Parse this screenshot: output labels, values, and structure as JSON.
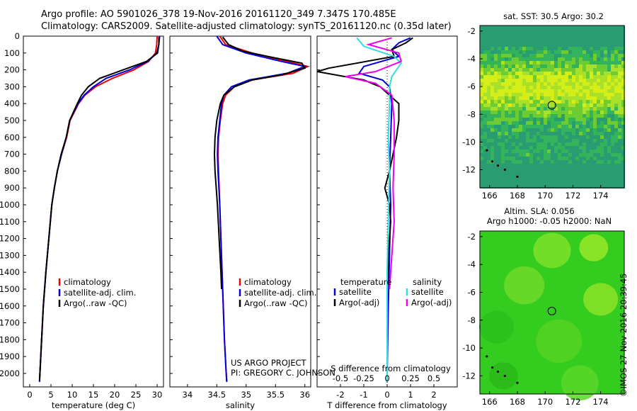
{
  "title": {
    "line1": "Argo profile: AO 5901026_378 19-Nov-2016 20161120_349 7.347S 170.485E",
    "line2": "Climatology: CARS2009. Satellite-adjusted climatology: synTS_20161120.nc (0.35d later)"
  },
  "credits": {
    "project": "US ARGO PROJECT",
    "pi": "PI: GREGORY C. JOHNSON"
  },
  "watermark": "©IMOS 27-Nov-2016 20:39:45",
  "colors": {
    "climatology": "#ee0000",
    "satellite": "#0000dd",
    "argo": "#000000",
    "sat_salinity": "#33dddd",
    "argo_salinity": "#ee00ee"
  },
  "chart_data": [
    {
      "type": "line",
      "id": "temperature",
      "xlabel": "temperature (deg C)",
      "ylabel": "",
      "xlim": [
        -1.5,
        31.5
      ],
      "ylim": [
        2080,
        0
      ],
      "xticks": [
        0,
        5,
        10,
        15,
        20,
        25,
        30
      ],
      "yticks": [
        0,
        100,
        200,
        300,
        400,
        500,
        600,
        700,
        800,
        900,
        1000,
        1100,
        1200,
        1300,
        1400,
        1500,
        1600,
        1700,
        1800,
        1900,
        2000
      ],
      "legend": [
        "climatology",
        "satellite-adj. clim.",
        "Argo(..raw -QC)"
      ],
      "series": [
        {
          "name": "climatology",
          "color_key": "climatology",
          "points": [
            [
              30.0,
              0
            ],
            [
              29.9,
              50
            ],
            [
              29.6,
              100
            ],
            [
              28.0,
              150
            ],
            [
              24.5,
              200
            ],
            [
              19.5,
              250
            ],
            [
              15.5,
              300
            ],
            [
              13.0,
              350
            ],
            [
              11.5,
              400
            ],
            [
              10.5,
              450
            ],
            [
              9.5,
              500
            ],
            [
              8.7,
              600
            ],
            [
              7.5,
              700
            ],
            [
              6.5,
              800
            ],
            [
              5.8,
              900
            ],
            [
              5.2,
              1000
            ],
            [
              4.5,
              1200
            ],
            [
              3.8,
              1400
            ],
            [
              3.2,
              1600
            ],
            [
              2.8,
              1800
            ],
            [
              2.4,
              2000
            ],
            [
              2.3,
              2050
            ]
          ]
        },
        {
          "name": "satellite-adj. clim.",
          "color_key": "satellite",
          "points": [
            [
              30.6,
              0
            ],
            [
              30.4,
              50
            ],
            [
              29.9,
              100
            ],
            [
              27.8,
              150
            ],
            [
              23.5,
              200
            ],
            [
              18.0,
              250
            ],
            [
              15.0,
              300
            ],
            [
              12.8,
              350
            ],
            [
              11.4,
              400
            ],
            [
              10.4,
              450
            ],
            [
              9.4,
              500
            ],
            [
              8.6,
              600
            ],
            [
              7.5,
              700
            ],
            [
              6.5,
              800
            ],
            [
              5.8,
              900
            ],
            [
              5.2,
              1000
            ],
            [
              4.5,
              1200
            ],
            [
              3.8,
              1400
            ],
            [
              3.2,
              1600
            ],
            [
              2.8,
              1800
            ],
            [
              2.4,
              2000
            ],
            [
              2.3,
              2050
            ]
          ]
        },
        {
          "name": "Argo(..raw -QC)",
          "color_key": "argo",
          "points": [
            [
              30.4,
              5
            ],
            [
              30.4,
              50
            ],
            [
              30.1,
              100
            ],
            [
              27.5,
              150
            ],
            [
              22.0,
              200
            ],
            [
              16.5,
              250
            ],
            [
              13.8,
              300
            ],
            [
              12.2,
              350
            ],
            [
              11.2,
              400
            ],
            [
              10.3,
              450
            ],
            [
              9.4,
              500
            ],
            [
              8.6,
              600
            ],
            [
              7.4,
              700
            ],
            [
              6.5,
              800
            ],
            [
              5.8,
              900
            ],
            [
              5.2,
              1000
            ],
            [
              4.5,
              1200
            ],
            [
              3.8,
              1400
            ],
            [
              3.2,
              1600
            ],
            [
              2.8,
              1800
            ],
            [
              2.4,
              2000
            ],
            [
              2.3,
              2040
            ]
          ]
        }
      ]
    },
    {
      "type": "line",
      "id": "salinity",
      "xlabel": "salinity",
      "ylabel": "",
      "xlim": [
        33.7,
        36.1
      ],
      "ylim": [
        2080,
        0
      ],
      "xticks": [
        34,
        34.5,
        35,
        35.5,
        36
      ],
      "legend": [
        "climatology",
        "satellite-adj. clim.",
        "Argo(..raw -QC)"
      ],
      "series": [
        {
          "name": "climatology",
          "color_key": "climatology",
          "points": [
            [
              34.55,
              0
            ],
            [
              34.65,
              50
            ],
            [
              35.1,
              100
            ],
            [
              35.7,
              150
            ],
            [
              36.05,
              180
            ],
            [
              35.8,
              220
            ],
            [
              35.1,
              260
            ],
            [
              34.8,
              300
            ],
            [
              34.65,
              350
            ],
            [
              34.6,
              400
            ],
            [
              34.56,
              500
            ],
            [
              34.53,
              600
            ],
            [
              34.52,
              700
            ],
            [
              34.53,
              800
            ],
            [
              34.55,
              1000
            ],
            [
              34.57,
              1200
            ],
            [
              34.6,
              1500
            ],
            [
              34.63,
              1800
            ],
            [
              34.66,
              2000
            ],
            [
              34.67,
              2050
            ]
          ]
        },
        {
          "name": "satellite-adj. clim.",
          "color_key": "satellite",
          "points": [
            [
              34.5,
              0
            ],
            [
              34.6,
              50
            ],
            [
              35.0,
              100
            ],
            [
              35.6,
              150
            ],
            [
              36.0,
              180
            ],
            [
              35.7,
              220
            ],
            [
              35.05,
              260
            ],
            [
              34.75,
              300
            ],
            [
              34.62,
              350
            ],
            [
              34.58,
              400
            ],
            [
              34.55,
              500
            ],
            [
              34.52,
              600
            ],
            [
              34.51,
              700
            ],
            [
              34.52,
              800
            ],
            [
              34.55,
              1000
            ],
            [
              34.57,
              1200
            ],
            [
              34.6,
              1500
            ],
            [
              34.63,
              1800
            ],
            [
              34.66,
              2000
            ],
            [
              34.67,
              2050
            ]
          ]
        },
        {
          "name": "Argo(..raw -QC)",
          "color_key": "argo",
          "points": [
            [
              34.6,
              5
            ],
            [
              34.7,
              50
            ],
            [
              34.95,
              90
            ],
            [
              35.5,
              130
            ],
            [
              35.95,
              160
            ],
            [
              36.0,
              190
            ],
            [
              35.6,
              230
            ],
            [
              35.1,
              260
            ],
            [
              34.8,
              300
            ],
            [
              34.62,
              350
            ],
            [
              34.56,
              400
            ],
            [
              34.5,
              500
            ],
            [
              34.47,
              600
            ],
            [
              34.46,
              700
            ],
            [
              34.47,
              800
            ],
            [
              34.51,
              1000
            ],
            [
              34.54,
              1200
            ],
            [
              34.57,
              1400
            ],
            [
              34.58,
              1500
            ]
          ]
        }
      ]
    },
    {
      "type": "line",
      "id": "difference",
      "xlabel": "T difference from climatology",
      "xlabel_top": "S difference from climatology",
      "xlim": [
        -3.0,
        3.0
      ],
      "ylim": [
        2080,
        0
      ],
      "xticks_T": [
        "-2",
        "-1",
        "0",
        "1",
        "2"
      ],
      "xticks_S": [
        "-0.5",
        "-0.25",
        "0",
        "0.25",
        "0.5"
      ],
      "legend_headers": [
        "temperature",
        "salinity"
      ],
      "legend": [
        "satellite",
        "Argo(-adj)",
        "satellite",
        "Argo(-adj)"
      ],
      "series": [
        {
          "name": "temperature satellite",
          "color_key": "satellite",
          "points": [
            [
              1.0,
              10
            ],
            [
              0.5,
              40
            ],
            [
              0.2,
              80
            ],
            [
              0.5,
              120
            ],
            [
              -1.0,
              180
            ],
            [
              -1.2,
              220
            ],
            [
              -0.2,
              260
            ],
            [
              0.1,
              300
            ],
            [
              0.2,
              400
            ],
            [
              0.15,
              600
            ],
            [
              0.1,
              800
            ],
            [
              0.15,
              1000
            ],
            [
              0.1,
              1300
            ],
            [
              0.05,
              1600
            ],
            [
              0.0,
              2000
            ],
            [
              0.0,
              2050
            ]
          ]
        },
        {
          "name": "temperature Argo(-adj)",
          "color_key": "argo",
          "points": [
            [
              1.1,
              10
            ],
            [
              0.8,
              40
            ],
            [
              0.2,
              80
            ],
            [
              0.3,
              120
            ],
            [
              -2.5,
              190
            ],
            [
              -3.0,
              210
            ],
            [
              -1.0,
              260
            ],
            [
              -0.3,
              300
            ],
            [
              0.5,
              400
            ],
            [
              0.5,
              500
            ],
            [
              0.4,
              600
            ],
            [
              0.25,
              700
            ],
            [
              0.1,
              800
            ],
            [
              -0.1,
              900
            ],
            [
              0.1,
              1000
            ],
            [
              0.15,
              1100
            ],
            [
              0.05,
              1300
            ],
            [
              0.0,
              1500
            ]
          ]
        },
        {
          "name": "salinity satellite",
          "color_key": "sat_salinity",
          "points": [
            [
              -1.3,
              10
            ],
            [
              -1.0,
              60
            ],
            [
              0.3,
              120
            ],
            [
              0.6,
              160
            ],
            [
              0.2,
              240
            ],
            [
              0.1,
              300
            ],
            [
              0.1,
              400
            ],
            [
              0.05,
              600
            ],
            [
              0.1,
              800
            ],
            [
              0.05,
              1100
            ],
            [
              0.0,
              1400
            ],
            [
              0.0,
              2050
            ]
          ]
        },
        {
          "name": "salinity Argo(-adj)",
          "color_key": "argo_salinity",
          "points": [
            [
              0.2,
              10
            ],
            [
              -0.8,
              50
            ],
            [
              0.5,
              100
            ],
            [
              0.6,
              150
            ],
            [
              -0.5,
              210
            ],
            [
              -1.8,
              240
            ],
            [
              -0.5,
              280
            ],
            [
              0.2,
              350
            ],
            [
              0.3,
              500
            ],
            [
              0.3,
              700
            ],
            [
              0.25,
              900
            ],
            [
              0.3,
              1100
            ],
            [
              0.2,
              1300
            ],
            [
              0.1,
              1500
            ]
          ]
        }
      ]
    },
    {
      "type": "heatmap",
      "id": "sst-map",
      "title": "sat. SST: 30.5 Argo: 30.2",
      "xticks": [
        166,
        168,
        170,
        172,
        174
      ],
      "yticks": [
        -2,
        -4,
        -6,
        -8,
        -10,
        -12
      ],
      "xlim": [
        165.3,
        175.7
      ],
      "ylim": [
        -13.3,
        -1.6
      ],
      "argo_position": [
        170.485,
        -7.347
      ]
    },
    {
      "type": "heatmap",
      "id": "sla-map",
      "title": "Altim. SLA: 0.056",
      "subtitle": "Argo h1000: -0.05 h2000: NaN",
      "xticks": [
        166,
        168,
        170,
        172,
        174
      ],
      "yticks": [
        -2,
        -4,
        -6,
        -8,
        -10,
        -12
      ],
      "xlim": [
        165.3,
        175.7
      ],
      "ylim": [
        -13.3,
        -1.6
      ],
      "argo_position": [
        170.485,
        -7.347
      ]
    }
  ]
}
